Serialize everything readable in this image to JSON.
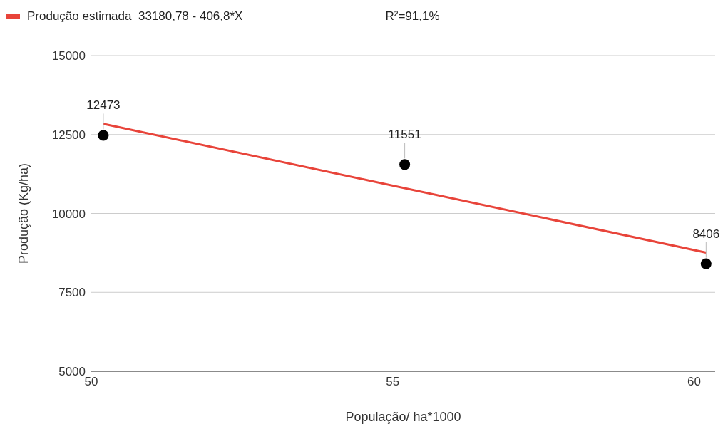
{
  "chart_data": {
    "type": "scatter",
    "xlabel": "População/ ha*1000",
    "ylabel": "Produção (Kg/ha)",
    "xlim": [
      50,
      60.35
    ],
    "xticks": [
      50,
      55,
      60
    ],
    "ylim": [
      5000,
      15000
    ],
    "yticks": [
      5000,
      7500,
      10000,
      12500,
      15000
    ],
    "grid": "y",
    "legend": "top left",
    "annotations": [
      "R²=91,1%"
    ],
    "series": [
      {
        "color": "#000000",
        "marker": "circle",
        "x": [
          50.2,
          55.2,
          60.2
        ],
        "values": [
          12473,
          11551,
          8406
        ],
        "value_labels": [
          "12473",
          "11551",
          "8406"
        ]
      },
      {
        "type": "line",
        "name": "Produção estimada  33180,78 - 406,8*X",
        "color": "#e8443a",
        "x": [
          50.2,
          60.2
        ],
        "values": [
          12840,
          8760
        ]
      }
    ]
  }
}
